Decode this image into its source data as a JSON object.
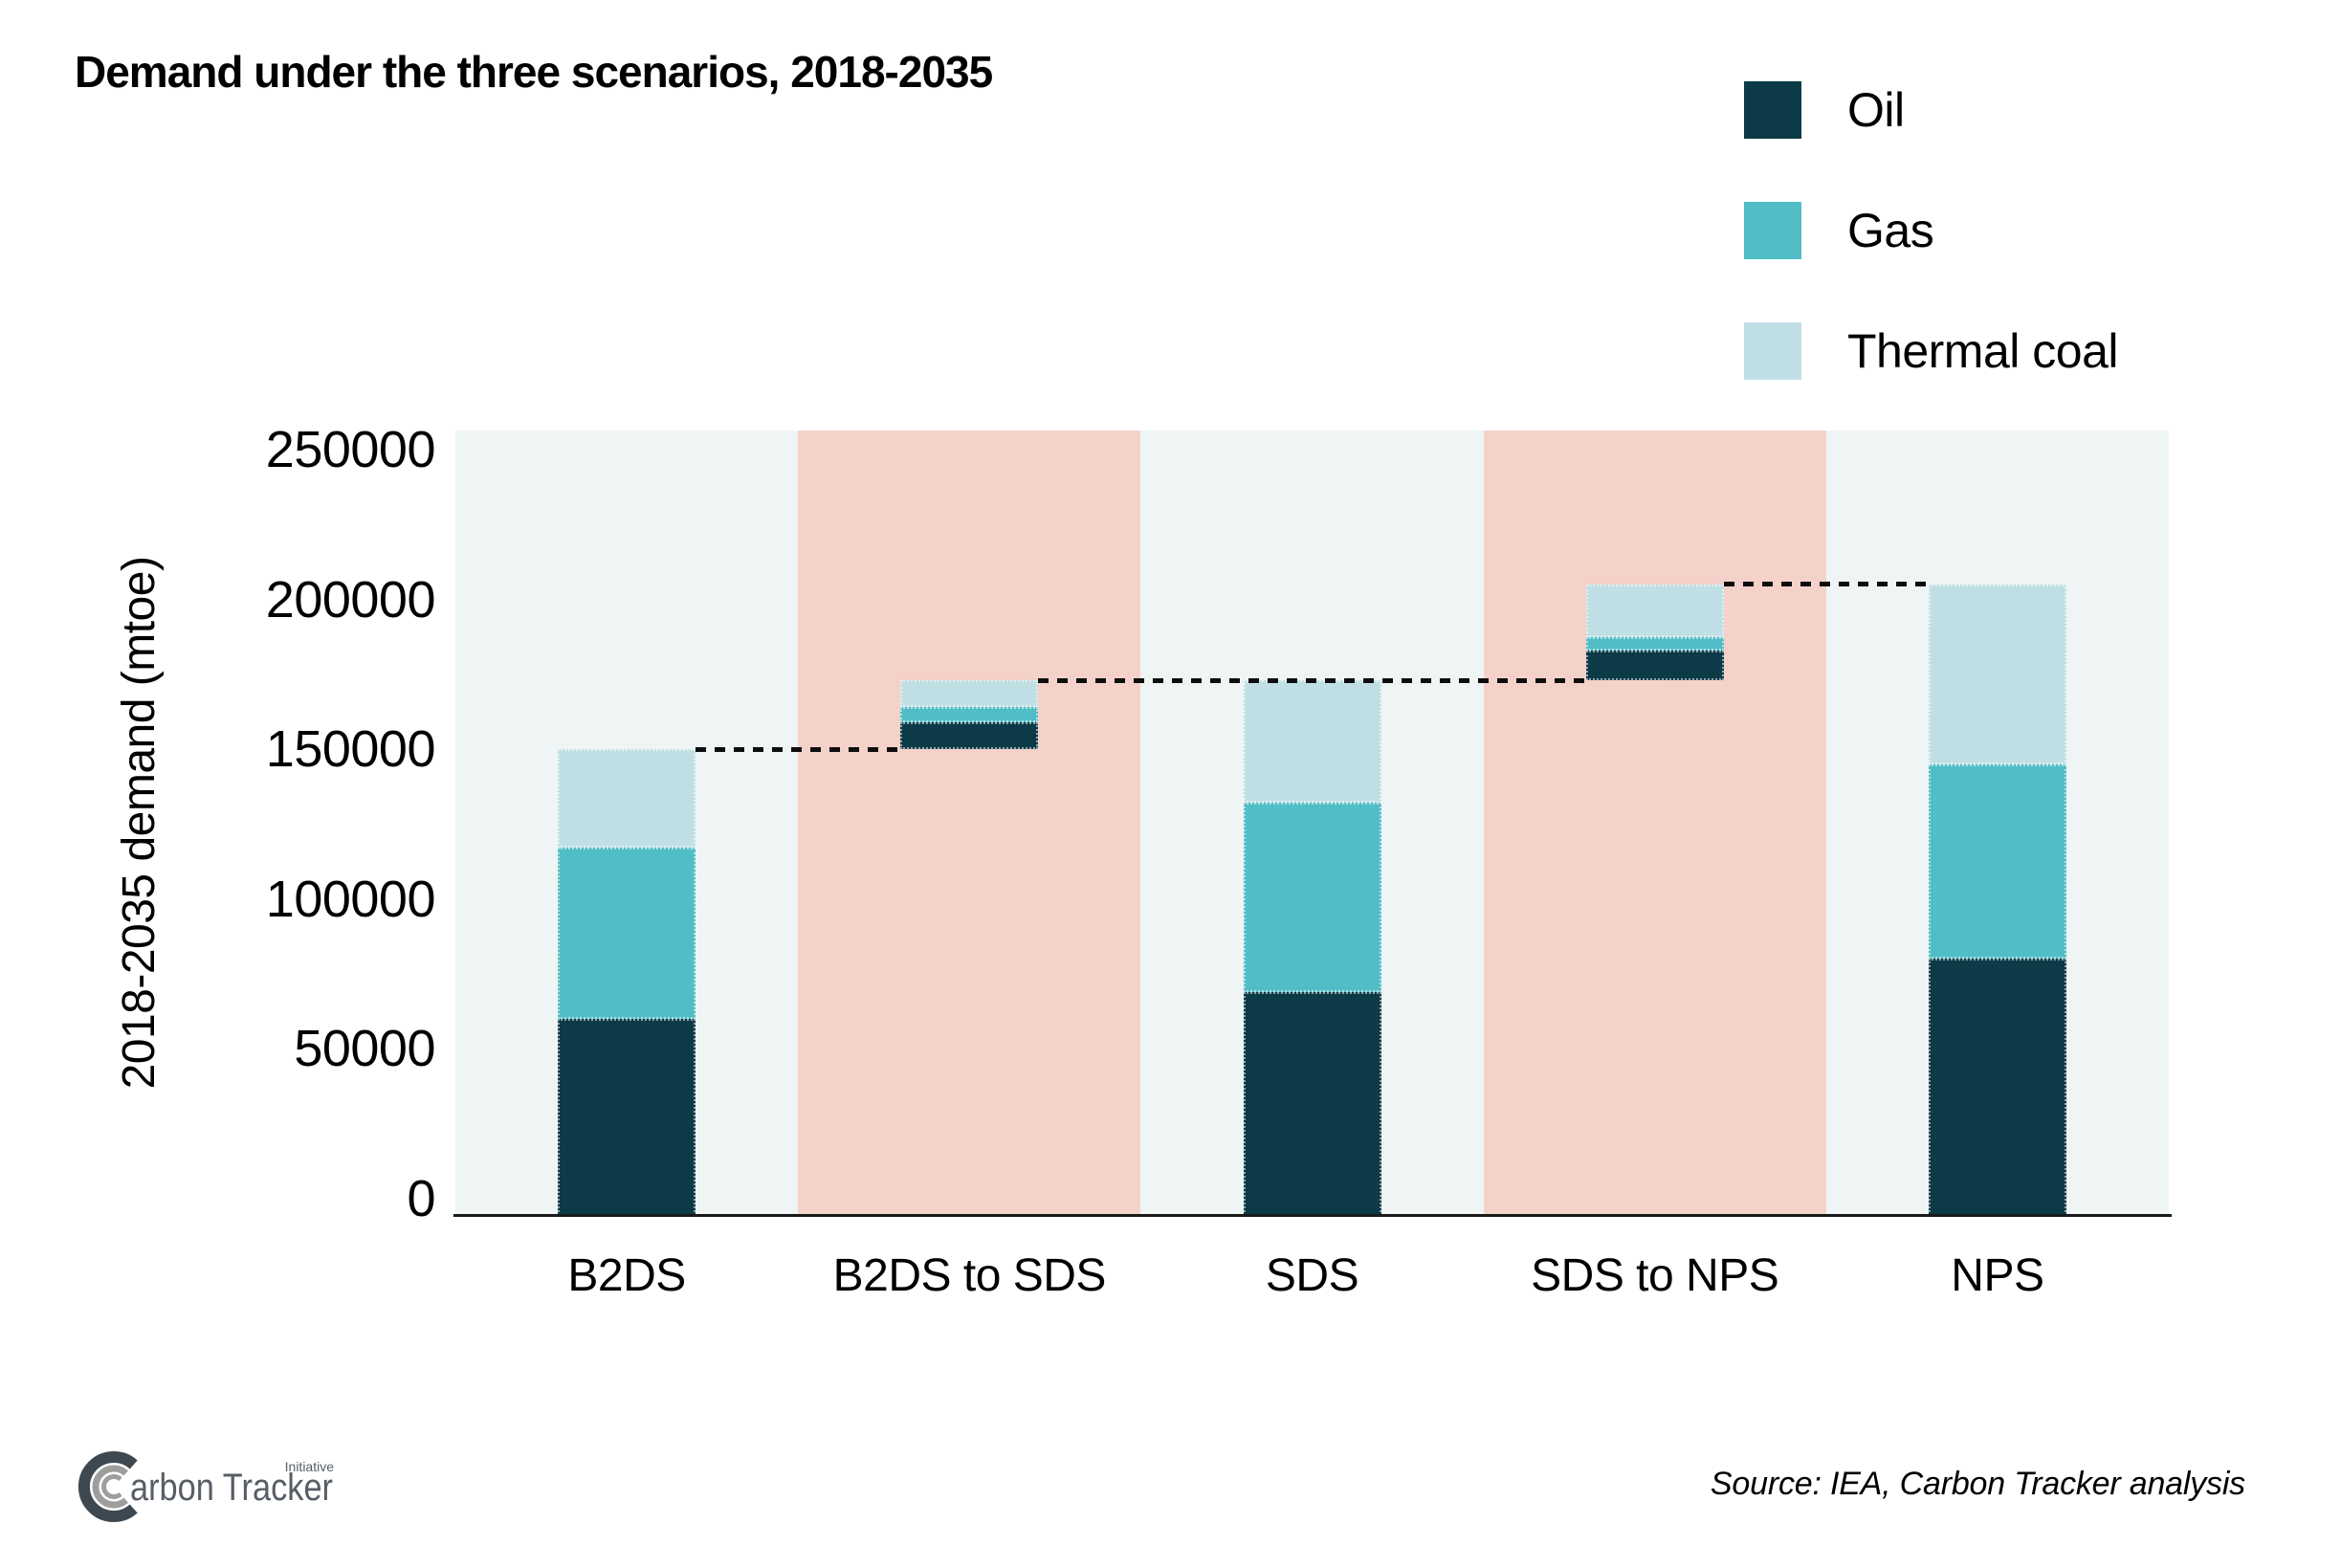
{
  "title": "Demand under the three scenarios, 2018-2035",
  "legend": [
    {
      "label": "Oil",
      "color": "#0d3a47"
    },
    {
      "label": "Gas",
      "color": "#51bdc6"
    },
    {
      "label": "Thermal coal",
      "color": "#bfdfe4"
    }
  ],
  "y_axis": {
    "title": "2018-2035 demand (mtoe)",
    "ticks": [
      0,
      50000,
      100000,
      150000,
      200000,
      250000
    ],
    "range": [
      0,
      250000
    ]
  },
  "chart_data": {
    "type": "bar",
    "subtype": "stacked-waterfall",
    "unit": "mtoe",
    "title": "Demand under the three scenarios, 2018-2035",
    "ylabel": "2018-2035 demand (mtoe)",
    "ylim": [
      0,
      250000
    ],
    "grid": false,
    "legend_position": "top-right",
    "categories": [
      "B2DS",
      "B2DS to SDS",
      "SDS",
      "SDS to NPS",
      "NPS"
    ],
    "series": [
      {
        "name": "Oil",
        "color": "#0d3a47",
        "values": [
          60000,
          9000,
          69000,
          10000,
          80000
        ]
      },
      {
        "name": "Gas",
        "color": "#51bdc6",
        "values": [
          57000,
          5000,
          63000,
          4500,
          65000
        ]
      },
      {
        "name": "Thermal coal",
        "color": "#bfdfe4",
        "values": [
          33000,
          9000,
          41000,
          17500,
          60000
        ]
      }
    ],
    "bar_bases": [
      0,
      150000,
      0,
      173000,
      0
    ],
    "bar_totals": [
      150000,
      173000,
      173000,
      205000,
      205000
    ],
    "floating": [
      false,
      true,
      false,
      true,
      false
    ],
    "band_colors": [
      "#eff5f4",
      "#f4d2ca",
      "#eff5f4",
      "#f4d2ca",
      "#eff5f4"
    ],
    "connectors": [
      {
        "value": 150000,
        "from_bar": 0,
        "to_bar": 1
      },
      {
        "value": 173000,
        "from_bar": 1,
        "to_bar": 3
      },
      {
        "value": 205000,
        "from_bar": 3,
        "to_bar": 4
      }
    ]
  },
  "footer": {
    "source": "Source: IEA, Carbon Tracker analysis",
    "logo": {
      "name": "Carbon Tracker",
      "text_after_c_mark": "arbon Tracker",
      "superscript": "Initiative",
      "dark_color": "#3e4851",
      "gray_color": "#9e9e9c",
      "text_color": "#575e66"
    }
  }
}
